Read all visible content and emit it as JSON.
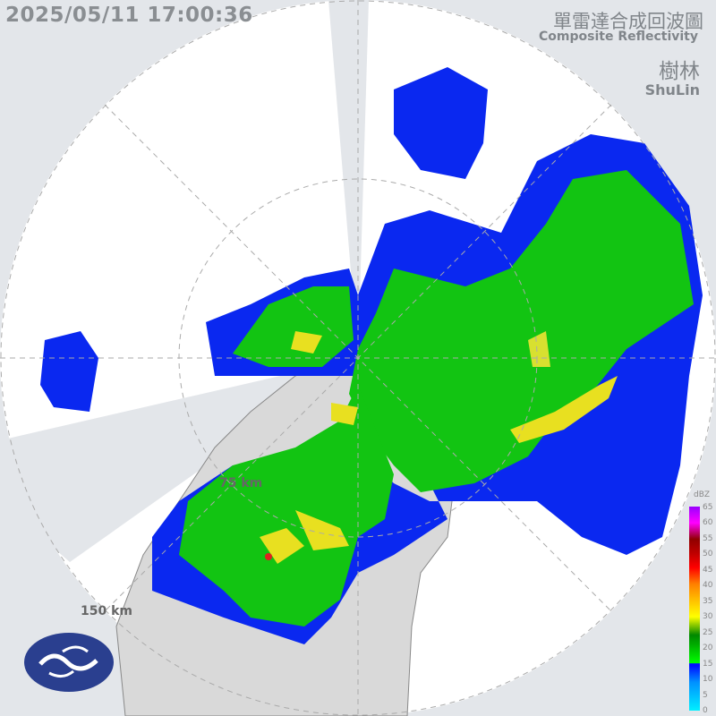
{
  "header": {
    "timestamp": "2025/05/11 17:00:36",
    "title_zh": "單雷達合成回波圖",
    "title_en": "Composite Reflectivity",
    "station_zh": "樹林",
    "station_en": "ShuLin"
  },
  "rings": [
    {
      "label": "75 km"
    },
    {
      "label": "150 km"
    }
  ],
  "legend": {
    "unit": "dBZ",
    "ticks": [
      "65",
      "60",
      "55",
      "50",
      "45",
      "40",
      "35",
      "30",
      "25",
      "20",
      "15",
      "10",
      "5",
      "0"
    ]
  },
  "logo": {
    "icon": "cwa-logo"
  },
  "colors": {
    "background": "#e3e6ea",
    "radar_coverage": "#ffffff",
    "land": "#d8d8d8",
    "blue_echo": "#0a28f0",
    "green_echo": "#12c412",
    "yellow_echo": "#e8e020"
  }
}
